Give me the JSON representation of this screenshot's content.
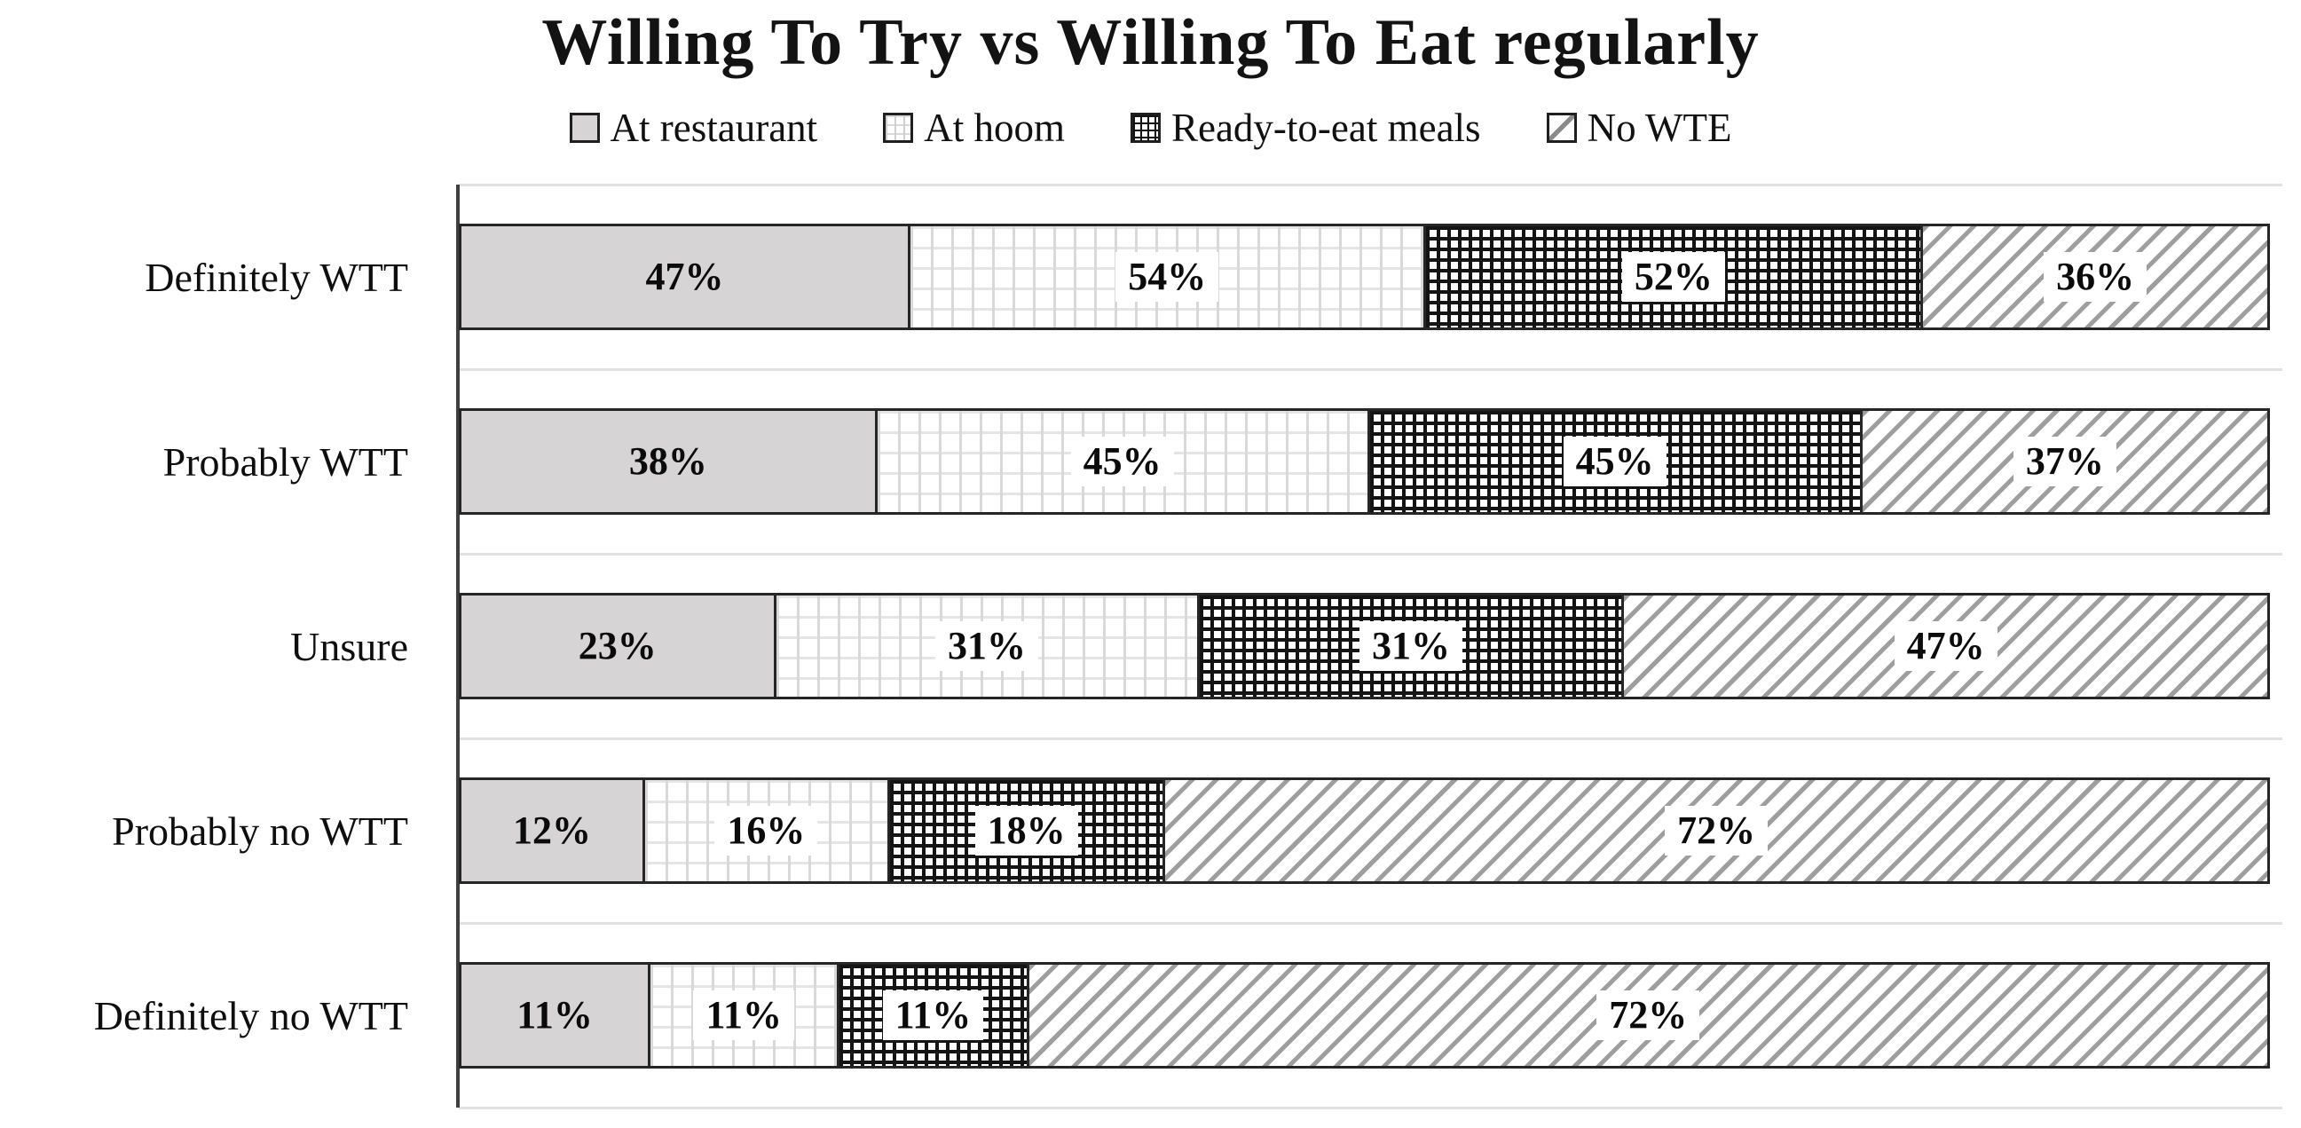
{
  "chart_data": {
    "type": "bar",
    "orientation": "horizontal",
    "stacked": true,
    "normalized_rows": true,
    "title": "Willing To Try vs Willing To Eat regularly",
    "legend_position": "top",
    "categories": [
      "Definitely WTT",
      "Probably WTT",
      "Unsure",
      "Probably no WTT",
      "Definitely no WTT"
    ],
    "series": [
      {
        "name": "At restaurant",
        "pattern": "solid-gray",
        "label_chip": false,
        "values": [
          47,
          38,
          23,
          12,
          11
        ]
      },
      {
        "name": "At hoom",
        "pattern": "light-grid",
        "label_chip": true,
        "values": [
          54,
          45,
          31,
          16,
          11
        ]
      },
      {
        "name": "Ready-to-eat meals",
        "pattern": "dark-crosshatch",
        "label_chip": true,
        "values": [
          52,
          45,
          31,
          18,
          11
        ]
      },
      {
        "name": "No WTE",
        "pattern": "diagonal-stripes",
        "label_chip": true,
        "values": [
          36,
          37,
          47,
          72,
          72
        ]
      }
    ],
    "value_label_format": "{v}%",
    "x_axis": {
      "tick_labels_visible": false
    },
    "grid": {
      "row_boundary_lines": true
    },
    "styles": {
      "bar_border": "#262626",
      "solid_gray_fill": "#d6d4d4",
      "light_grid_line": "#d9d9d9",
      "crosshatch_line": "#141414",
      "diagonal_stripe": "#9e9e9e",
      "gridline": "#e1e1e1",
      "axis_line": "#3f3f3f",
      "text": "#111111",
      "background": "#ffffff"
    }
  }
}
